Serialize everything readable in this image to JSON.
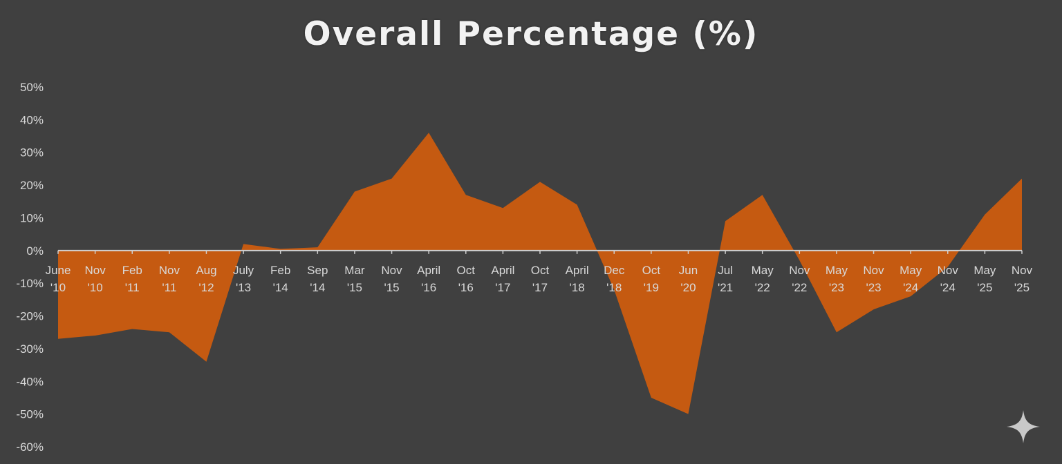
{
  "colors": {
    "background": "#404040",
    "area_fill": "#c55a11",
    "axis_line": "#d0d0d0",
    "tick_text": "#d9d9d9",
    "title_text": "#f2f2f2"
  },
  "chart_data": {
    "type": "area",
    "title": "Overall Percentage (%)",
    "xlabel": "",
    "ylabel": "",
    "ylim": [
      -60,
      50
    ],
    "y_ticks": [
      50,
      40,
      30,
      20,
      10,
      0,
      -10,
      -20,
      -30,
      -40,
      -50,
      -60
    ],
    "y_tick_labels": [
      "50%",
      "40%",
      "30%",
      "20%",
      "10%",
      "0%",
      "-10%",
      "-20%",
      "-30%",
      "-40%",
      "-50%",
      "-60%"
    ],
    "grid": false,
    "legend": "none",
    "categories": [
      [
        "June",
        "'10"
      ],
      [
        "Nov",
        "'10"
      ],
      [
        "Feb",
        "'11"
      ],
      [
        "Nov",
        "'11"
      ],
      [
        "Aug",
        "'12"
      ],
      [
        "July",
        "'13"
      ],
      [
        "Feb",
        "'14"
      ],
      [
        "Sep",
        "'14"
      ],
      [
        "Mar",
        "'15"
      ],
      [
        "Nov",
        "'15"
      ],
      [
        "April",
        "'16"
      ],
      [
        "Oct",
        "'16"
      ],
      [
        "April",
        "'17"
      ],
      [
        "Oct",
        "'17"
      ],
      [
        "April",
        "'18"
      ],
      [
        "Dec",
        "'18"
      ],
      [
        "Oct",
        "'19"
      ],
      [
        "Jun",
        "'20"
      ],
      [
        "Jul",
        "'21"
      ],
      [
        "May",
        "'22"
      ],
      [
        "Nov",
        "'22"
      ],
      [
        "May",
        "'23"
      ],
      [
        "Nov",
        "'23"
      ],
      [
        "May",
        "'24"
      ],
      [
        "Nov",
        "'24"
      ],
      [
        "May",
        "'25"
      ],
      [
        "Nov",
        "'25"
      ]
    ],
    "series": [
      {
        "values": [
          -27,
          -26,
          -24,
          -25,
          -34,
          2,
          0.5,
          1,
          18,
          22,
          36,
          17,
          13,
          21,
          14,
          -12,
          -45,
          -50,
          9,
          17,
          -3,
          -25,
          -18,
          -14,
          -5,
          11,
          22
        ]
      }
    ]
  },
  "icons": {
    "watermark": "sparkle-icon"
  }
}
